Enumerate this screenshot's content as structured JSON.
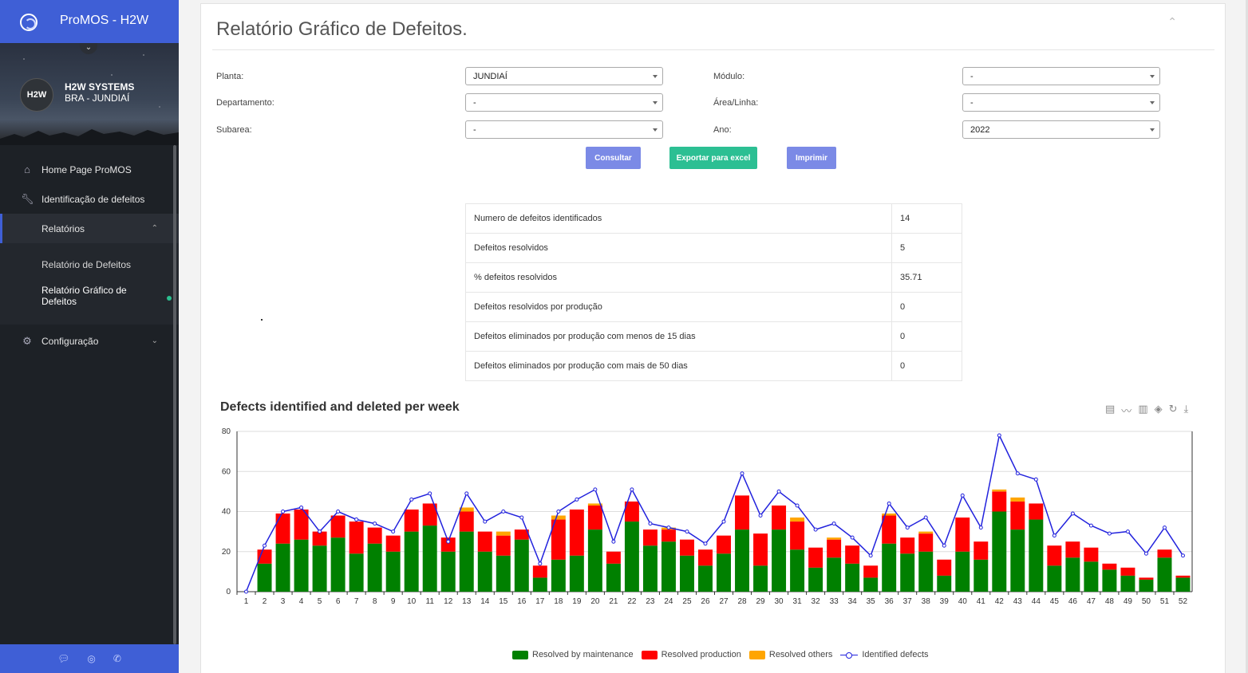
{
  "app": {
    "title": "ProMOS - H2W"
  },
  "profile": {
    "avatar": "H2W",
    "org": "H2W SYSTEMS",
    "location": "BRA - JUNDIAÍ"
  },
  "nav": {
    "home": "Home Page ProMOS",
    "defects": "Identificação de defeitos",
    "reports": "Relatórios",
    "report_defects": "Relatório de Defeitos",
    "report_chart": "Relatório Gráfico de Defeitos",
    "config": "Configuração"
  },
  "page": {
    "title": "Relatório Gráfico de Defeitos."
  },
  "filters": {
    "planta_label": "Planta:",
    "planta_value": "JUNDIAÍ",
    "modulo_label": "Módulo:",
    "modulo_value": "-",
    "depto_label": "Departamento:",
    "depto_value": "-",
    "area_label": "Área/Linha:",
    "area_value": "-",
    "subarea_label": "Subarea:",
    "subarea_value": "-",
    "ano_label": "Ano:",
    "ano_value": "2022"
  },
  "buttons": {
    "consultar": "Consultar",
    "exportar": "Exportar para excel",
    "imprimir": "Imprimir"
  },
  "stats": [
    {
      "label": "Numero de defeitos identificados",
      "value": "14"
    },
    {
      "label": "Defeitos resolvidos",
      "value": "5"
    },
    {
      "label": "% defeitos resolvidos",
      "value": "35.71"
    },
    {
      "label": "Defeitos resolvidos por produção",
      "value": "0"
    },
    {
      "label": "Defeitos eliminados por produção com menos de 15 dias",
      "value": "0"
    },
    {
      "label": "Defeitos eliminados por produção com mais de 50 dias",
      "value": "0"
    }
  ],
  "chart_data": {
    "type": "bar",
    "title": "Defects identified and deleted per week",
    "x": [
      1,
      2,
      3,
      4,
      5,
      6,
      7,
      8,
      9,
      10,
      11,
      12,
      13,
      14,
      15,
      16,
      17,
      18,
      19,
      20,
      21,
      22,
      23,
      24,
      25,
      26,
      27,
      28,
      29,
      30,
      31,
      32,
      33,
      34,
      35,
      36,
      37,
      38,
      39,
      40,
      41,
      42,
      43,
      44,
      45,
      46,
      47,
      48,
      49,
      50,
      51,
      52
    ],
    "ylim": [
      0,
      80
    ],
    "yticks": [
      0,
      20,
      40,
      60,
      80
    ],
    "grid": true,
    "legend_position": "bottom",
    "series": [
      {
        "name": "Resolved by maintenance",
        "kind": "bar",
        "stack": "resolved",
        "color": "#008000",
        "values": [
          0,
          14,
          24,
          26,
          23,
          27,
          19,
          24,
          20,
          30,
          33,
          20,
          30,
          20,
          18,
          26,
          7,
          16,
          18,
          31,
          14,
          35,
          23,
          25,
          18,
          13,
          19,
          31,
          13,
          31,
          21,
          12,
          17,
          14,
          7,
          24,
          19,
          20,
          8,
          20,
          16,
          40,
          31,
          36,
          13,
          17,
          15,
          11,
          8,
          6,
          17,
          7
        ]
      },
      {
        "name": "Resolved production",
        "kind": "bar",
        "stack": "resolved",
        "color": "#ff0000",
        "values": [
          0,
          7,
          15,
          15,
          7,
          11,
          16,
          8,
          8,
          11,
          11,
          7,
          10,
          10,
          10,
          5,
          6,
          20,
          23,
          12,
          6,
          10,
          8,
          6,
          8,
          8,
          9,
          17,
          16,
          12,
          14,
          10,
          9,
          9,
          6,
          14,
          8,
          9,
          8,
          17,
          9,
          10,
          14,
          8,
          10,
          8,
          7,
          3,
          4,
          1,
          4,
          1
        ]
      },
      {
        "name": "Resolved others",
        "kind": "bar",
        "stack": "resolved",
        "color": "#ffa500",
        "values": [
          0,
          0,
          0,
          0,
          0,
          0,
          0,
          0,
          0,
          0,
          0,
          0,
          2,
          0,
          2,
          0,
          0,
          2,
          0,
          1,
          0,
          0,
          0,
          1,
          0,
          0,
          0,
          0,
          0,
          0,
          2,
          0,
          1,
          0,
          0,
          1,
          0,
          1,
          0,
          0,
          0,
          1,
          2,
          0,
          0,
          0,
          0,
          0,
          0,
          0,
          0,
          0
        ]
      },
      {
        "name": "Identified defects",
        "kind": "line",
        "color": "#2222dd",
        "values": [
          0,
          23,
          40,
          42,
          30,
          40,
          36,
          34,
          30,
          46,
          49,
          25,
          49,
          35,
          40,
          37,
          14,
          40,
          46,
          51,
          25,
          51,
          34,
          32,
          30,
          24,
          35,
          59,
          38,
          50,
          43,
          31,
          34,
          27,
          18,
          44,
          32,
          37,
          23,
          48,
          32,
          78,
          59,
          56,
          28,
          39,
          33,
          29,
          30,
          19,
          32,
          18
        ]
      }
    ]
  },
  "icons": {
    "toolbox": [
      "data-view-icon",
      "line-chart-icon",
      "bar-chart-icon",
      "stack-icon",
      "restore-icon",
      "download-icon"
    ],
    "footer": [
      "chat-icon",
      "globe-icon",
      "phone-icon"
    ]
  }
}
